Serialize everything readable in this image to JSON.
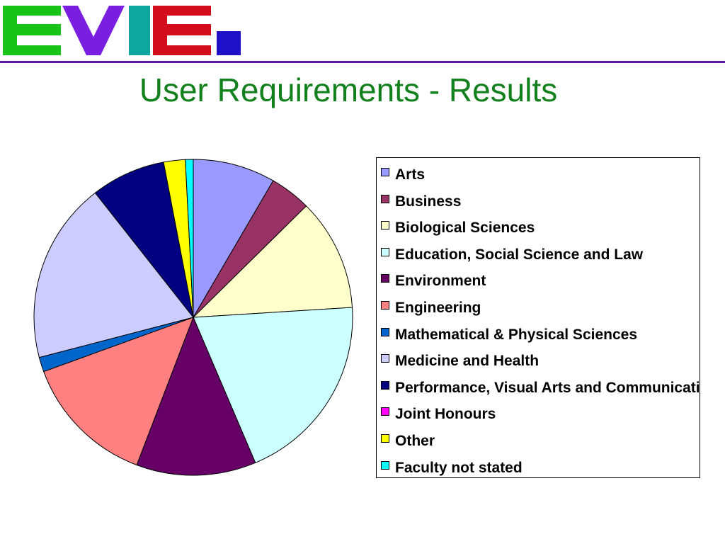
{
  "header": {
    "logo_text": "EVIE.",
    "logo_letter_colors": [
      "#18c418",
      "#7a1fe0",
      "#0fa6a0",
      "#d40d1c",
      "#1f10c8"
    ]
  },
  "slide": {
    "title": "User Requirements - Results"
  },
  "chart_data": {
    "type": "pie",
    "title": "",
    "legend_position": "right",
    "categories": [
      "Arts",
      "Business",
      "Biological Sciences",
      "Education, Social Science and Law",
      "Environment",
      "Engineering",
      "Mathematical & Physical Sciences",
      "Medicine and Health",
      "Performance, Visual Arts and Communications",
      "Joint Honours",
      "Other",
      "Faculty not stated"
    ],
    "values": [
      8.4,
      4.2,
      11.5,
      19.7,
      12.2,
      13.7,
      1.5,
      18.6,
      7.6,
      0.0,
      2.2,
      0.8
    ],
    "colors": [
      "#9999ff",
      "#993366",
      "#ffffcc",
      "#ccffff",
      "#660066",
      "#ff8080",
      "#0066cc",
      "#ccccff",
      "#000080",
      "#ff00ff",
      "#ffff00",
      "#00ffff"
    ]
  }
}
